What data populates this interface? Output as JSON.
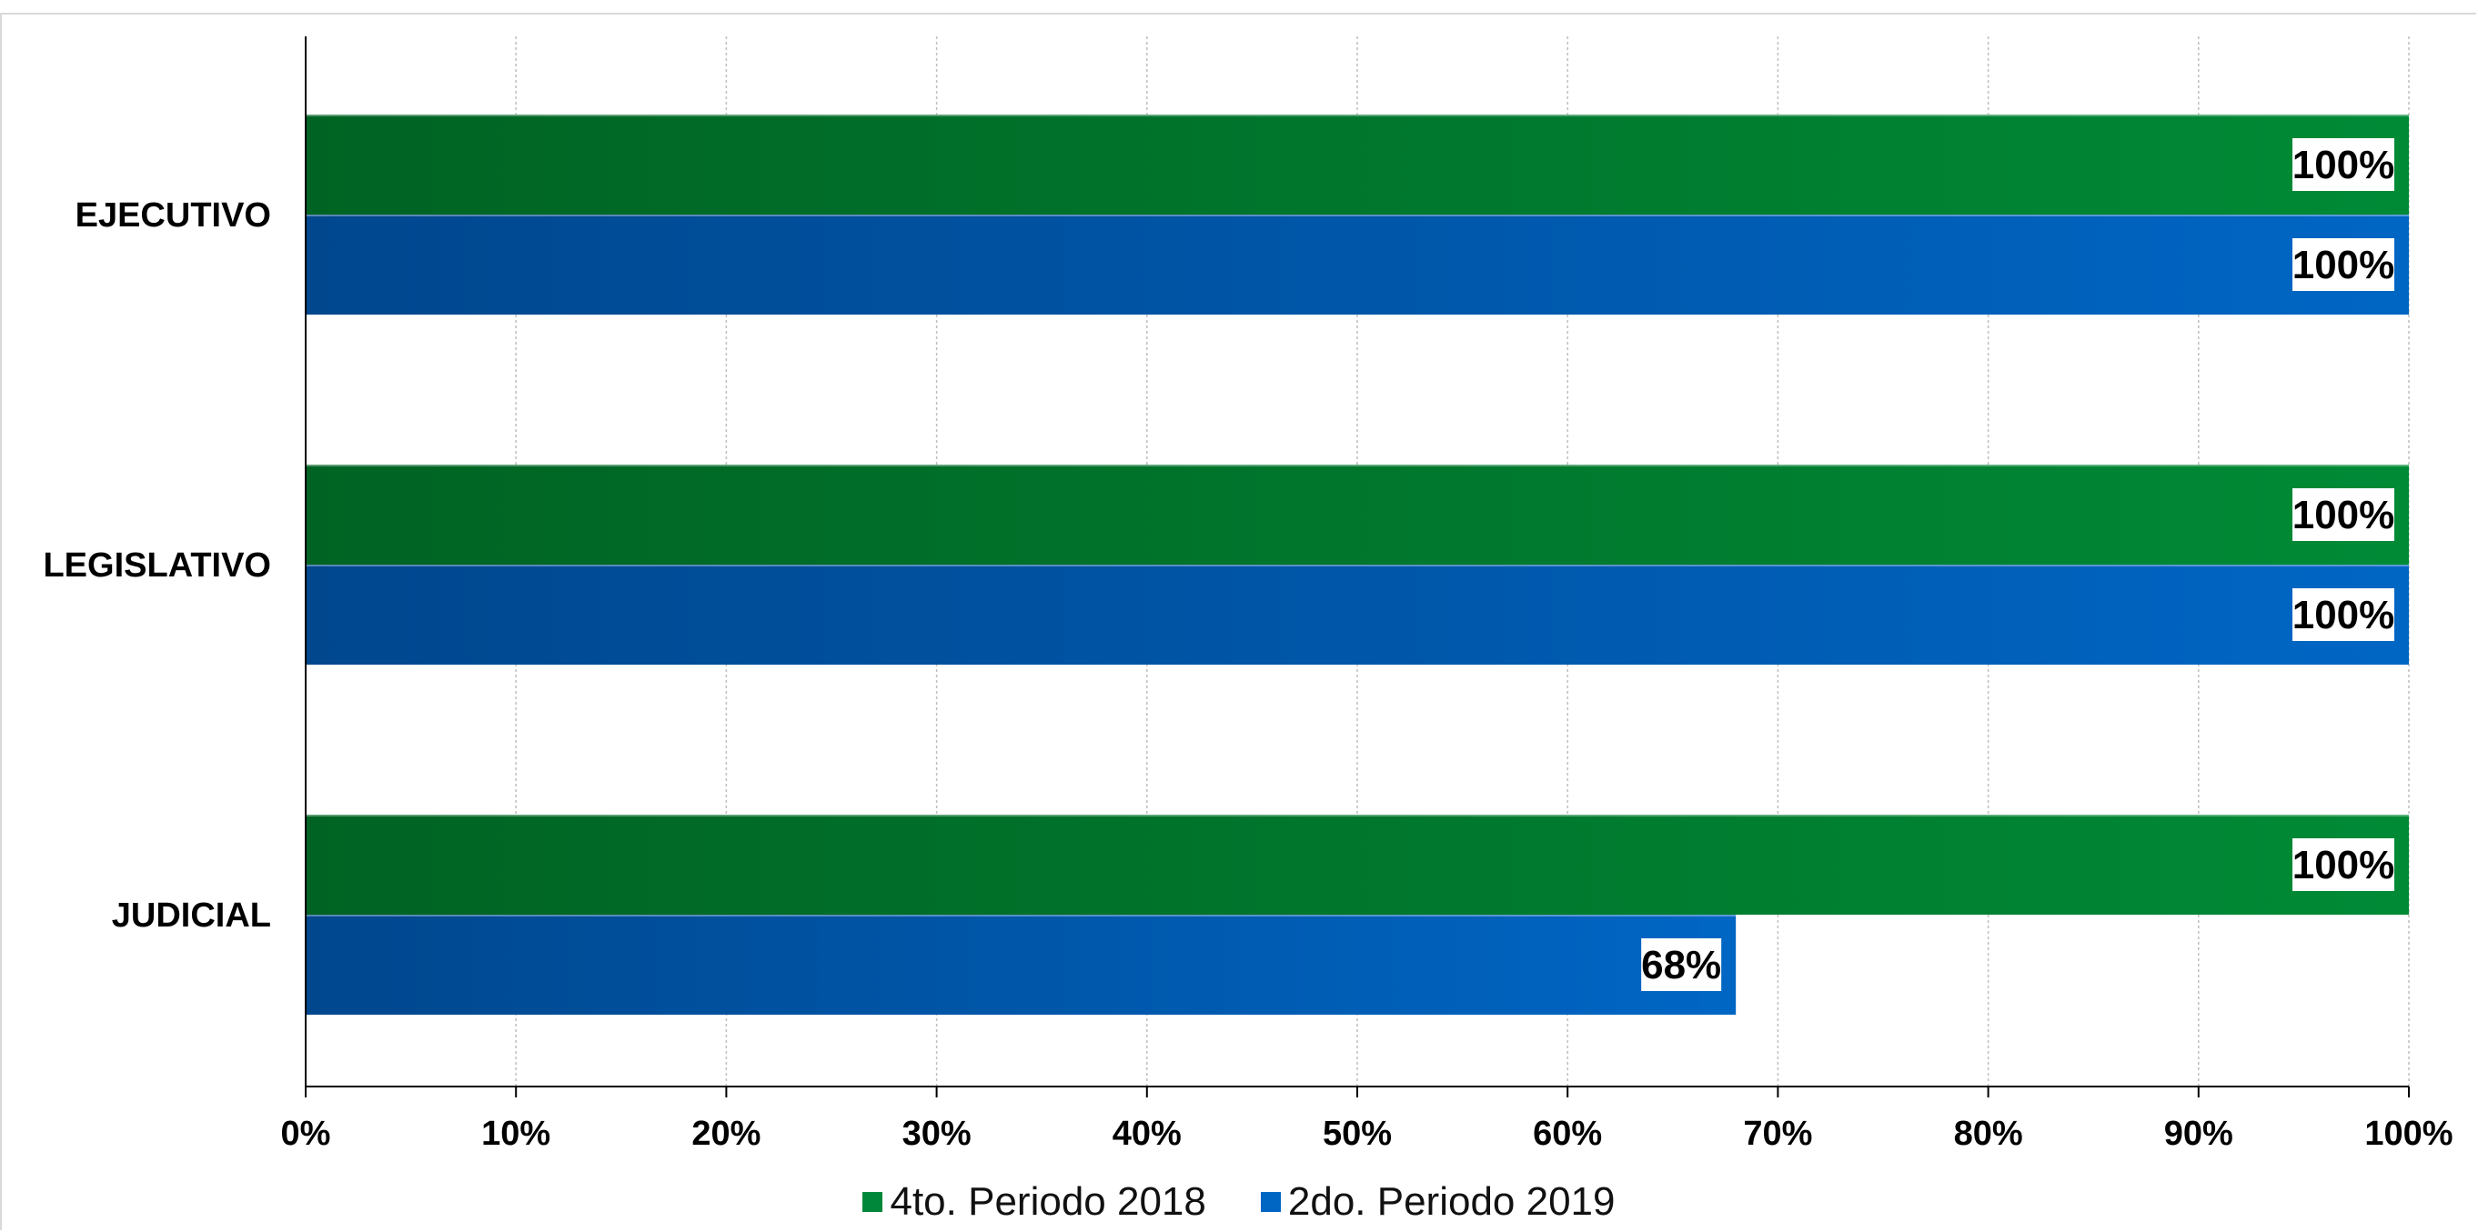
{
  "chart_data": {
    "type": "bar",
    "orientation": "horizontal",
    "categories": [
      "EJECUTIVO",
      "LEGISLATIVO",
      "JUDICIAL"
    ],
    "series": [
      {
        "name": "4to. Periodo 2018",
        "values": [
          100,
          100,
          100
        ],
        "labels": [
          "100%",
          "100%",
          "100%"
        ],
        "color": "#00873a"
      },
      {
        "name": "2do. Periodo 2019",
        "values": [
          100,
          100,
          68
        ],
        "labels": [
          "100%",
          "100%",
          "68%"
        ],
        "color": "#0066c4"
      }
    ],
    "xlim": [
      0,
      100
    ],
    "x_ticks": [
      "0%",
      "10%",
      "20%",
      "30%",
      "40%",
      "50%",
      "60%",
      "70%",
      "80%",
      "90%",
      "100%"
    ],
    "grid": true,
    "legend_position": "bottom",
    "title": "",
    "xlabel": "",
    "ylabel": ""
  }
}
